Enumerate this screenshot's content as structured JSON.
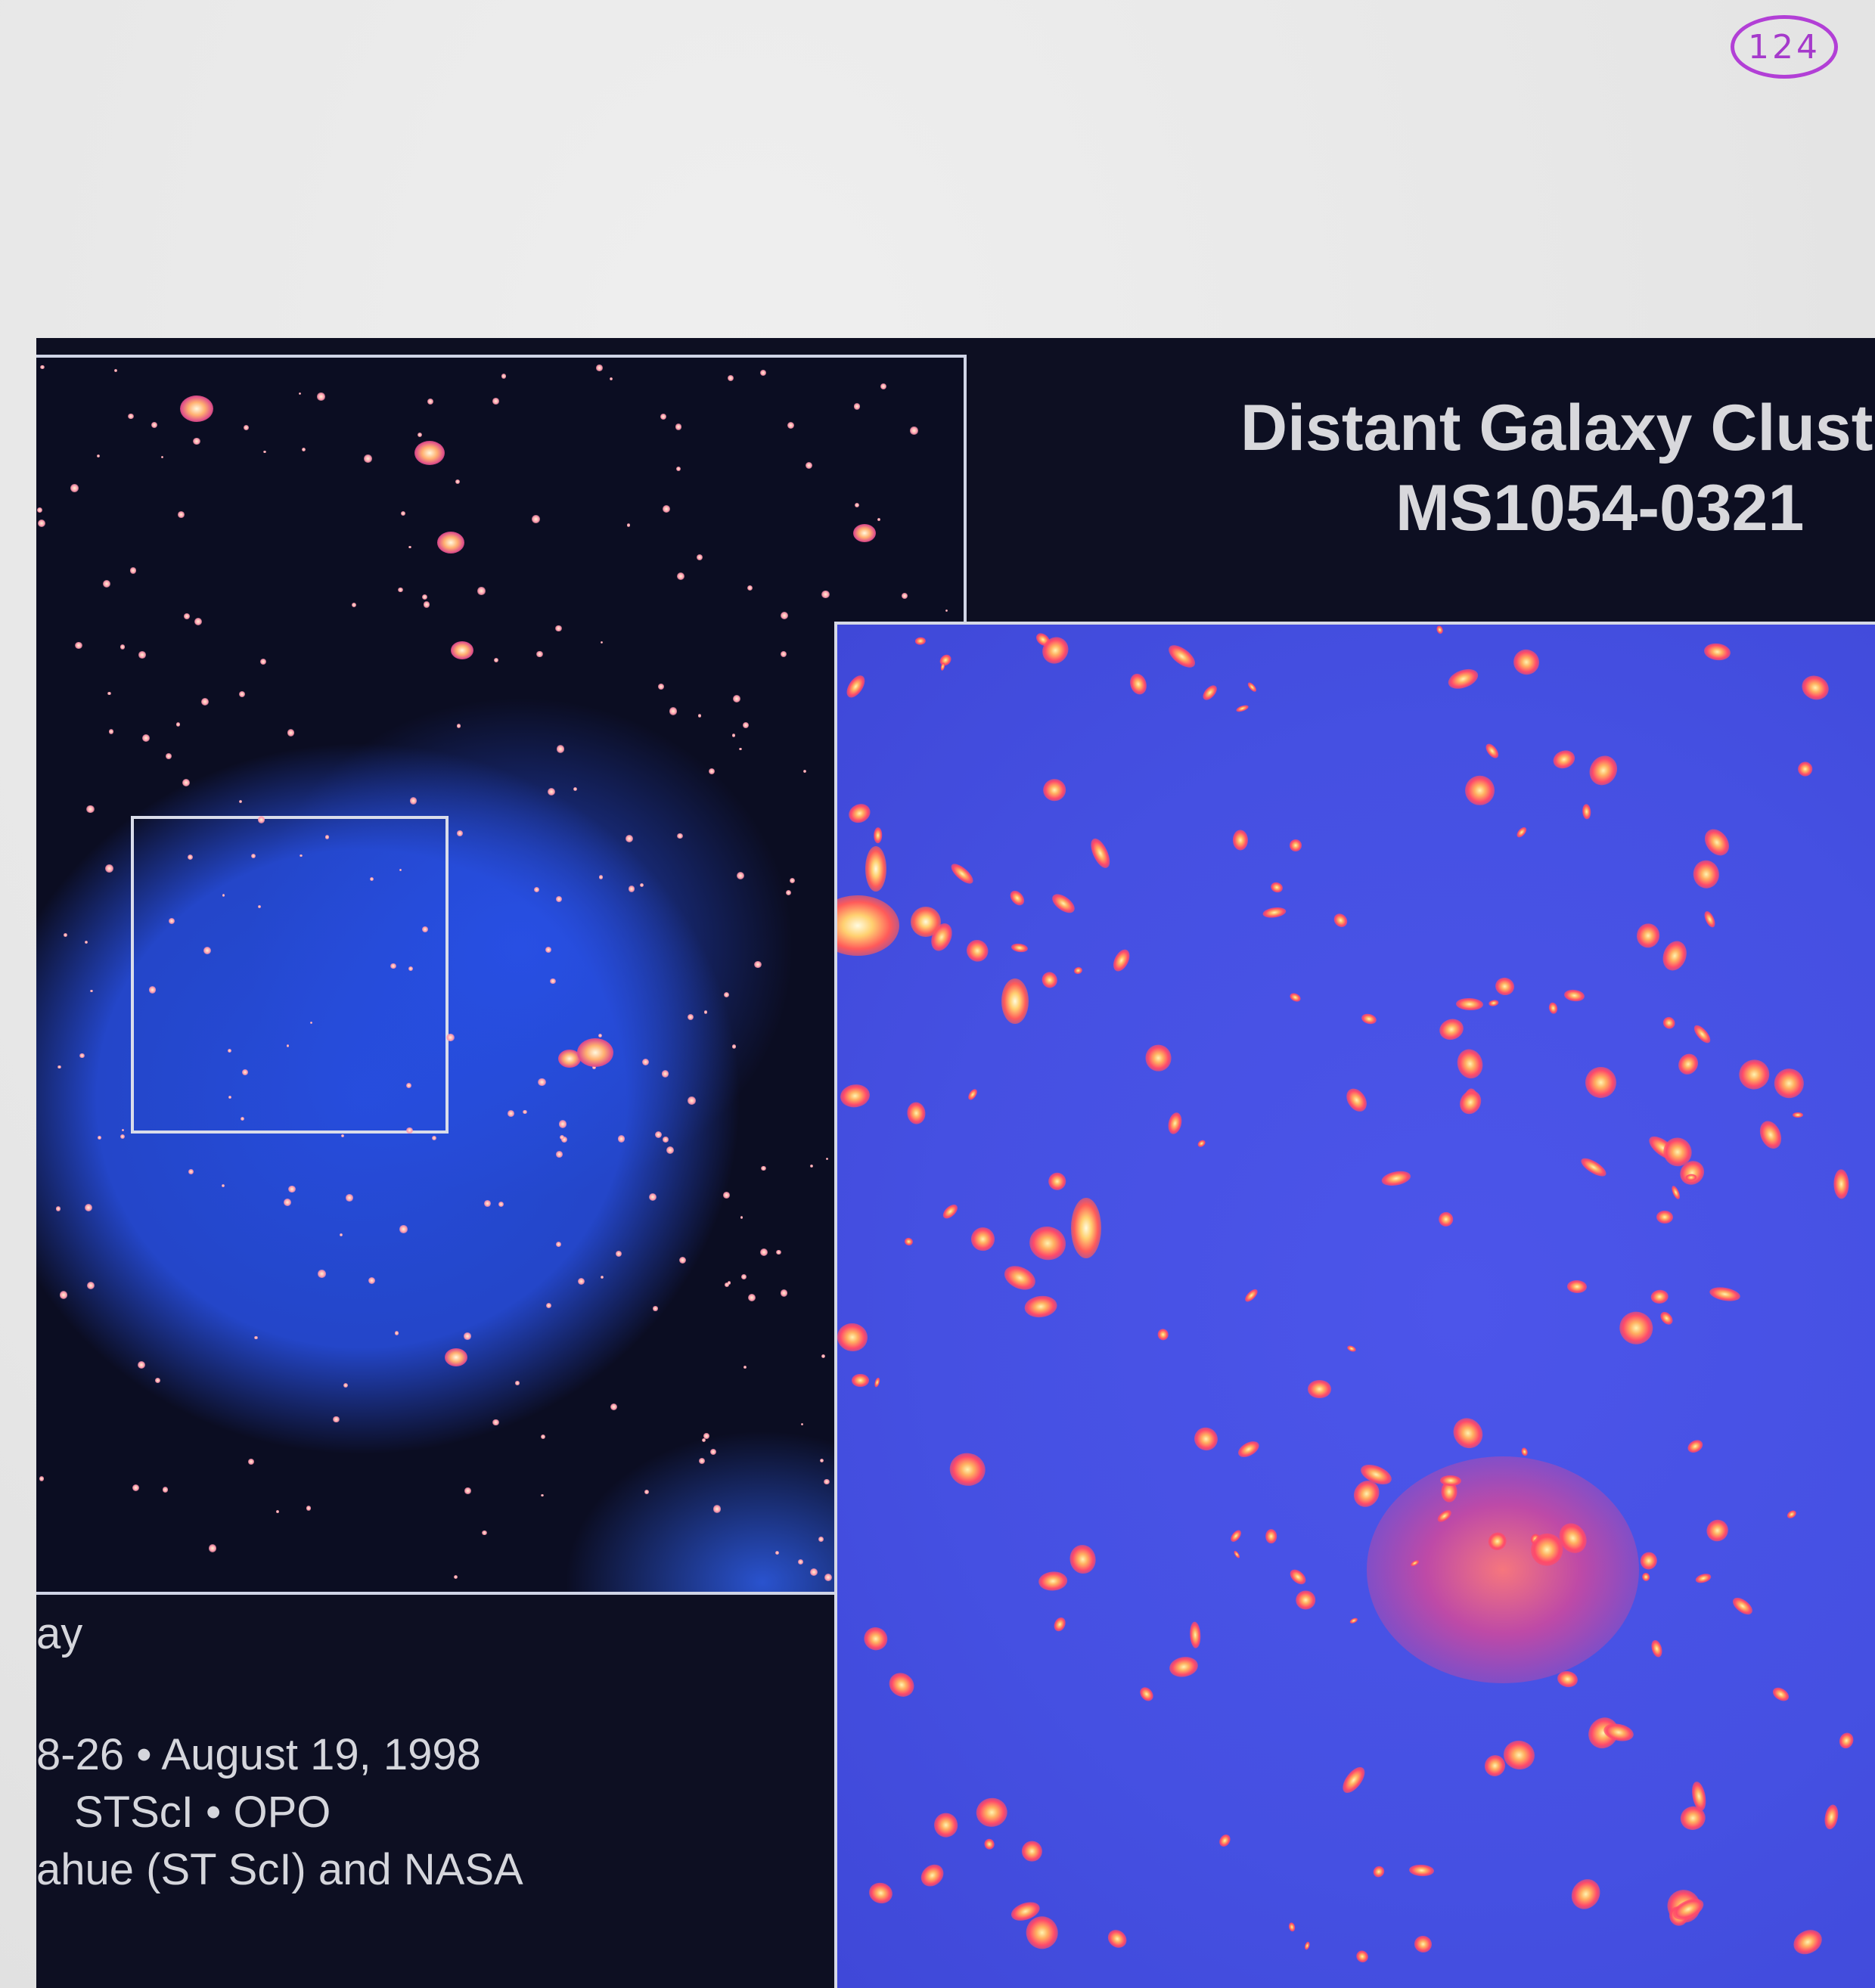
{
  "page_number": "124",
  "title": {
    "line1": "Distant Galaxy Clust",
    "line2": "MS1054-0321"
  },
  "credits": {
    "label_fragment": "ay",
    "release": "8-26 • August 19, 1998",
    "institution": "STScI • OPO",
    "authors": "ahue (ST ScI) and NASA"
  },
  "colors": {
    "page_number_ink": "#b23fd6",
    "background_dark": "#0d0f22",
    "xray_blue": "#2850e6",
    "inset_blue": "#4550e2",
    "galaxy_core": "#ffd070"
  }
}
